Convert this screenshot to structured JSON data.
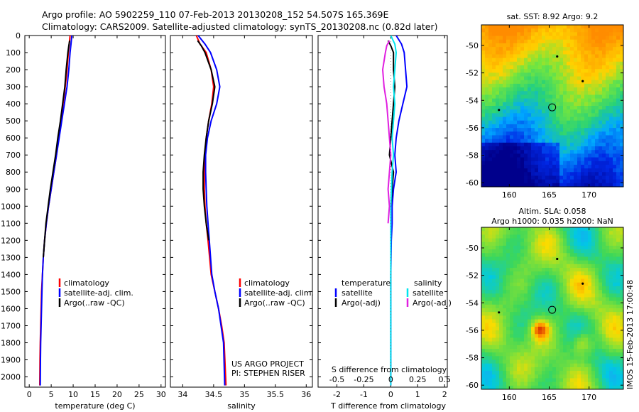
{
  "header": {
    "line1": "Argo profile: AO 5902259_110 07-Feb-2013 20130208_152 54.507S 165.369E",
    "line2": "Climatology: CARS2009. Satellite-adjusted climatology: synTS_20130208.nc (0.82d later)"
  },
  "colors": {
    "climatology": "#ff0000",
    "satellite": "#0000ff",
    "argo": "#000000",
    "satellite_salinity": "#00e5ee",
    "argo_salinity_diff": "#e020e0"
  },
  "chart_data": [
    {
      "type": "line",
      "panel": "temperature",
      "xlabel": "temperature (deg C)",
      "xlim": [
        -1,
        31
      ],
      "ylim": [
        2060,
        0
      ],
      "y_reversed": true,
      "xticks": [
        0,
        5,
        10,
        15,
        20,
        25,
        30
      ],
      "yticks": [
        0,
        100,
        200,
        300,
        400,
        500,
        600,
        700,
        800,
        900,
        1000,
        1100,
        1200,
        1300,
        1400,
        1500,
        1600,
        1700,
        1800,
        1900,
        2000
      ],
      "legend": [
        "climatology",
        "satellite-adj. clim.",
        "Argo(..raw -QC)"
      ],
      "series": [
        {
          "name": "climatology",
          "color": "#ff0000",
          "x": [
            9.3,
            9.1,
            8.9,
            8.6,
            8.2,
            7.7,
            7.2,
            6.7,
            6.2,
            5.6,
            5.0,
            4.4,
            3.9,
            3.5,
            3.2,
            3.0,
            2.8,
            2.7,
            2.6,
            2.5,
            2.45,
            2.4
          ],
          "y": [
            0,
            50,
            100,
            200,
            300,
            400,
            500,
            600,
            700,
            800,
            900,
            1000,
            1100,
            1200,
            1300,
            1400,
            1500,
            1600,
            1700,
            1800,
            1900,
            2050
          ]
        },
        {
          "name": "satellite-adj. clim.",
          "color": "#0000ff",
          "x": [
            9.7,
            9.5,
            9.3,
            9.0,
            8.6,
            8.0,
            7.4,
            6.8,
            6.2,
            5.6,
            5.0,
            4.4,
            3.9,
            3.5,
            3.2,
            3.0,
            2.9,
            2.8,
            2.7,
            2.6,
            2.55,
            2.5
          ],
          "y": [
            0,
            50,
            100,
            200,
            300,
            400,
            500,
            600,
            700,
            800,
            900,
            1000,
            1100,
            1200,
            1300,
            1400,
            1500,
            1600,
            1700,
            1800,
            1900,
            2050
          ]
        },
        {
          "name": "Argo(..raw -QC)",
          "color": "#000000",
          "x": [
            9.2,
            9.0,
            8.8,
            8.4,
            8.1,
            7.6,
            7.1,
            6.5,
            6.0,
            5.4,
            4.8,
            4.3,
            3.8,
            3.5,
            3.2
          ],
          "y": [
            30,
            60,
            100,
            200,
            300,
            400,
            500,
            600,
            700,
            800,
            900,
            1000,
            1100,
            1200,
            1300
          ]
        }
      ]
    },
    {
      "type": "line",
      "panel": "salinity",
      "xlabel": "salinity",
      "xlim": [
        33.8,
        36.1
      ],
      "ylim": [
        2060,
        0
      ],
      "y_reversed": true,
      "xticks": [
        34,
        34.5,
        35,
        35.5,
        36
      ],
      "legend": [
        "climatology",
        "satellite-adj. clim.",
        "Argo(..raw -QC)"
      ],
      "annotations": [
        "US ARGO PROJECT",
        "PI: STEPHEN RISER"
      ],
      "series": [
        {
          "name": "climatology",
          "color": "#ff0000",
          "x": [
            34.22,
            34.28,
            34.38,
            34.46,
            34.5,
            34.47,
            34.42,
            34.38,
            34.36,
            34.35,
            34.35,
            34.36,
            34.38,
            34.41,
            34.46,
            34.52,
            34.58,
            34.63,
            34.67,
            34.7
          ],
          "y": [
            0,
            50,
            100,
            200,
            300,
            400,
            500,
            600,
            700,
            800,
            900,
            1000,
            1100,
            1200,
            1400,
            1500,
            1600,
            1700,
            1800,
            2050
          ]
        },
        {
          "name": "satellite-adj. clim.",
          "color": "#0000ff",
          "x": [
            34.25,
            34.36,
            34.45,
            34.55,
            34.6,
            34.55,
            34.46,
            34.4,
            34.37,
            34.37,
            34.38,
            34.39,
            34.41,
            34.43,
            34.47,
            34.52,
            34.58,
            34.62,
            34.66,
            34.68
          ],
          "y": [
            0,
            50,
            100,
            200,
            300,
            400,
            500,
            600,
            700,
            800,
            900,
            1000,
            1100,
            1200,
            1400,
            1500,
            1600,
            1700,
            1800,
            2050
          ]
        },
        {
          "name": "Argo(..raw -QC)",
          "color": "#000000",
          "x": [
            34.24,
            34.3,
            34.36,
            34.46,
            34.52,
            34.48,
            34.42,
            34.38,
            34.35,
            34.33,
            34.33,
            34.35,
            34.38,
            34.42
          ],
          "y": [
            30,
            60,
            100,
            200,
            300,
            400,
            500,
            600,
            700,
            800,
            900,
            1000,
            1100,
            1200
          ]
        }
      ]
    },
    {
      "type": "line",
      "panel": "difference",
      "xlabel": "T difference from climatology",
      "xlabel_top": "S difference from climatology",
      "xlim": [
        -2.7,
        2.1
      ],
      "ylim": [
        2060,
        0
      ],
      "y_reversed": true,
      "xticks": [
        -2,
        -1,
        0,
        1,
        2
      ],
      "xticks_top": [
        "-0.5",
        "-0.25",
        "0",
        "0.25",
        "0.5"
      ],
      "legend_titles": [
        "temperature",
        "salinity"
      ],
      "legend": [
        "satellite",
        "Argo(-adj)",
        "satellite",
        "Argo(-adj)"
      ],
      "series": [
        {
          "name": "temperature satellite",
          "color": "#0000ff",
          "x": [
            0.2,
            0.4,
            0.5,
            0.55,
            0.6,
            0.45,
            0.3,
            0.2,
            0.15,
            0.2,
            0.1,
            0.05,
            0.05,
            0.02,
            0.0,
            0.0,
            0.0,
            0.0,
            0.0
          ],
          "y": [
            0,
            50,
            100,
            200,
            300,
            400,
            500,
            600,
            700,
            800,
            900,
            1000,
            1100,
            1200,
            1400,
            1600,
            1800,
            1900,
            2050
          ]
        },
        {
          "name": "temperature Argo(-adj)",
          "color": "#000000",
          "x": [
            -0.1,
            0.0,
            0.1,
            0.1,
            0.15,
            0.1,
            0.05,
            0.0,
            -0.05,
            0.1,
            0.05,
            0.0
          ],
          "y": [
            30,
            60,
            100,
            200,
            300,
            400,
            500,
            600,
            700,
            800,
            900,
            1000
          ]
        },
        {
          "name": "salinity satellite",
          "color": "#00e5ee",
          "x": [
            0.0,
            0.15,
            0.2,
            0.15,
            0.1,
            0.15,
            0.1,
            0.05,
            0.1,
            0.05,
            0.0,
            0.0,
            0.0,
            0.0,
            0.0,
            0.0
          ],
          "y": [
            0,
            50,
            100,
            200,
            300,
            400,
            500,
            600,
            700,
            800,
            1000,
            1200,
            1400,
            1600,
            1800,
            2050
          ]
        },
        {
          "name": "salinity Argo(-adj)",
          "color": "#e020e0",
          "x": [
            -0.05,
            -0.15,
            -0.2,
            -0.3,
            -0.25,
            -0.15,
            -0.1,
            -0.05,
            0.0,
            -0.05,
            -0.1,
            -0.05,
            -0.1
          ],
          "y": [
            30,
            60,
            100,
            200,
            300,
            400,
            500,
            600,
            700,
            800,
            900,
            1000,
            1100
          ]
        }
      ]
    },
    {
      "type": "heatmap",
      "panel": "sst-map",
      "title": "sat. SST: 8.92 Argo: 9.2",
      "xticks": [
        160,
        165,
        170
      ],
      "yticks": [
        -50,
        -52,
        -54,
        -56,
        -58,
        -60
      ],
      "xlim": [
        156.5,
        174.3
      ],
      "ylim": [
        -60.3,
        -48.5
      ],
      "float_position": [
        165.369,
        -54.507
      ]
    },
    {
      "type": "heatmap",
      "panel": "sla-map",
      "title": "Altim. SLA: 0.058",
      "subtitle": "Argo h1000: 0.035 h2000: NaN",
      "xticks": [
        160,
        165,
        170
      ],
      "yticks": [
        -50,
        -52,
        -54,
        -56,
        -58,
        -60
      ],
      "xlim": [
        156.5,
        174.3
      ],
      "ylim": [
        -60.3,
        -48.5
      ],
      "float_position": [
        165.369,
        -54.507
      ]
    }
  ],
  "footer": {
    "stamp": "IMOS 15-Feb-2013 17:00:48"
  }
}
